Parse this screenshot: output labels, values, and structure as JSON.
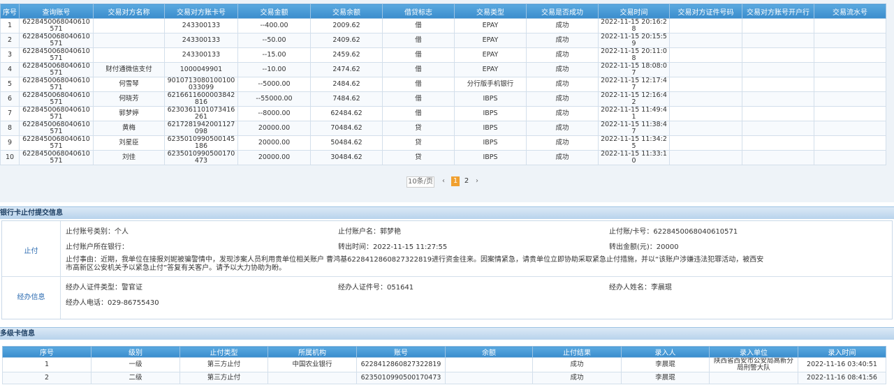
{
  "transactions": {
    "columns": [
      "序号",
      "查询账号",
      "交易对方名称",
      "交易对方账卡号",
      "交易金额",
      "交易余额",
      "借贷标志",
      "交易类型",
      "交易是否成功",
      "交易时间",
      "交易对方证件号码",
      "交易对方账号开户行",
      "交易流水号"
    ],
    "rows": [
      {
        "no": 1,
        "account": "6228450068040610571",
        "card": "243300133",
        "amount": "--400.00",
        "balance": "2009.62",
        "dc": "借",
        "type": "EPAY",
        "result": "成功",
        "time": "2022-11-15 20:16:28"
      },
      {
        "no": 2,
        "account": "6228450068040610571",
        "card": "243300133",
        "amount": "--50.00",
        "balance": "2409.62",
        "dc": "借",
        "type": "EPAY",
        "result": "成功",
        "time": "2022-11-15 20:15:59"
      },
      {
        "no": 3,
        "account": "6228450068040610571",
        "card": "243300133",
        "amount": "--15.00",
        "balance": "2459.62",
        "dc": "借",
        "type": "EPAY",
        "result": "成功",
        "time": "2022-11-15 20:11:08"
      },
      {
        "no": 4,
        "account": "6228450068040610571",
        "name": "财付通微信支付",
        "card": "1000049901",
        "amount": "--10.00",
        "balance": "2474.62",
        "dc": "借",
        "type": "EPAY",
        "result": "成功",
        "time": "2022-11-15 18:08:07"
      },
      {
        "no": 5,
        "account": "6228450068040610571",
        "name": "何雪琴",
        "card": "9010713080100100033099",
        "amount": "--5000.00",
        "balance": "2484.62",
        "dc": "借",
        "type": "分行版手机银行",
        "result": "成功",
        "time": "2022-11-15 12:17:47"
      },
      {
        "no": 6,
        "account": "6228450068040610571",
        "name": "何晓芳",
        "card": "6216611600003842816",
        "amount": "--55000.00",
        "balance": "7484.62",
        "dc": "借",
        "type": "IBPS",
        "result": "成功",
        "time": "2022-11-15 12:16:42"
      },
      {
        "no": 7,
        "account": "6228450068040610571",
        "name": "郭梦婷",
        "card": "6230361101073416261",
        "amount": "--8000.00",
        "balance": "62484.62",
        "dc": "借",
        "type": "IBPS",
        "result": "成功",
        "time": "2022-11-15 11:49:41"
      },
      {
        "no": 8,
        "account": "6228450068040610571",
        "name": "黄梅",
        "card": "6217281942001127098",
        "amount": "20000.00",
        "balance": "70484.62",
        "dc": "贷",
        "type": "IBPS",
        "result": "成功",
        "time": "2022-11-15 11:38:47"
      },
      {
        "no": 9,
        "account": "6228450068040610571",
        "name": "刘星臣",
        "card": "6235010990500145186",
        "amount": "20000.00",
        "balance": "50484.62",
        "dc": "贷",
        "type": "IBPS",
        "result": "成功",
        "time": "2022-11-15 11:34:25"
      },
      {
        "no": 10,
        "account": "6228450068040610571",
        "name": "刘佳",
        "card": "6235010990500170473",
        "amount": "20000.00",
        "balance": "30484.62",
        "dc": "贷",
        "type": "IBPS",
        "result": "成功",
        "time": "2022-11-15 11:33:10"
      }
    ]
  },
  "pagination": {
    "page_size": "10条/页",
    "pages": [
      1,
      2
    ]
  },
  "stop_payment": {
    "title": "银行卡止付提交信息",
    "sections": [
      {
        "label": "止付",
        "lines": [
          [
            "止付账号类别：个人",
            "止付账户名：郭梦艳",
            "止付账/卡号：6228450068040610571"
          ],
          [
            "止付账户所在银行：",
            "转出时间：2022-11-15 11:27:55",
            "转出金额(元)：20000"
          ],
          [
            "止付事由：近期，我单位在接报刘妮被骗警情中，发现涉案人员利用贵单位相关账户 曹鸿基6228412860827322819进行资金往来。因案情紧急，请贵单位立即协助采取紧急止付措施，并以“该账户涉嫌违法犯罪活动，被西安市高新区公安机关予以紧急止付”答复有关客户。请予以大力协助为盼。"
          ]
        ]
      },
      {
        "label": "经办信息",
        "lines": [
          [
            "经办人证件类型：警官证",
            "经办人证件号：051641",
            "经办人姓名：李晨琨"
          ],
          [
            "经办人电话：029-86755430"
          ]
        ]
      }
    ]
  },
  "multi_card": {
    "title": "多级卡信息",
    "columns": [
      "序号",
      "级别",
      "止付类型",
      "所属机构",
      "账号",
      "余额",
      "止付结果",
      "录入人",
      "录入单位",
      "录入时间"
    ],
    "rows": [
      {
        "no": 1,
        "level": "一级",
        "stop_type": "第三方止付",
        "org": "中国农业银行",
        "account": "6228412860827322819",
        "result": "成功",
        "operator": "李晨琨",
        "unit": "陕西省西安市公安局高新分局刑警大队",
        "time": "2022-11-16 03:40:51"
      },
      {
        "no": 2,
        "level": "二级",
        "stop_type": "第三方止付",
        "account": "6235010990500170473",
        "result": "成功",
        "operator": "李晨琨",
        "time": "2022-11-16 08:41:56"
      }
    ]
  }
}
